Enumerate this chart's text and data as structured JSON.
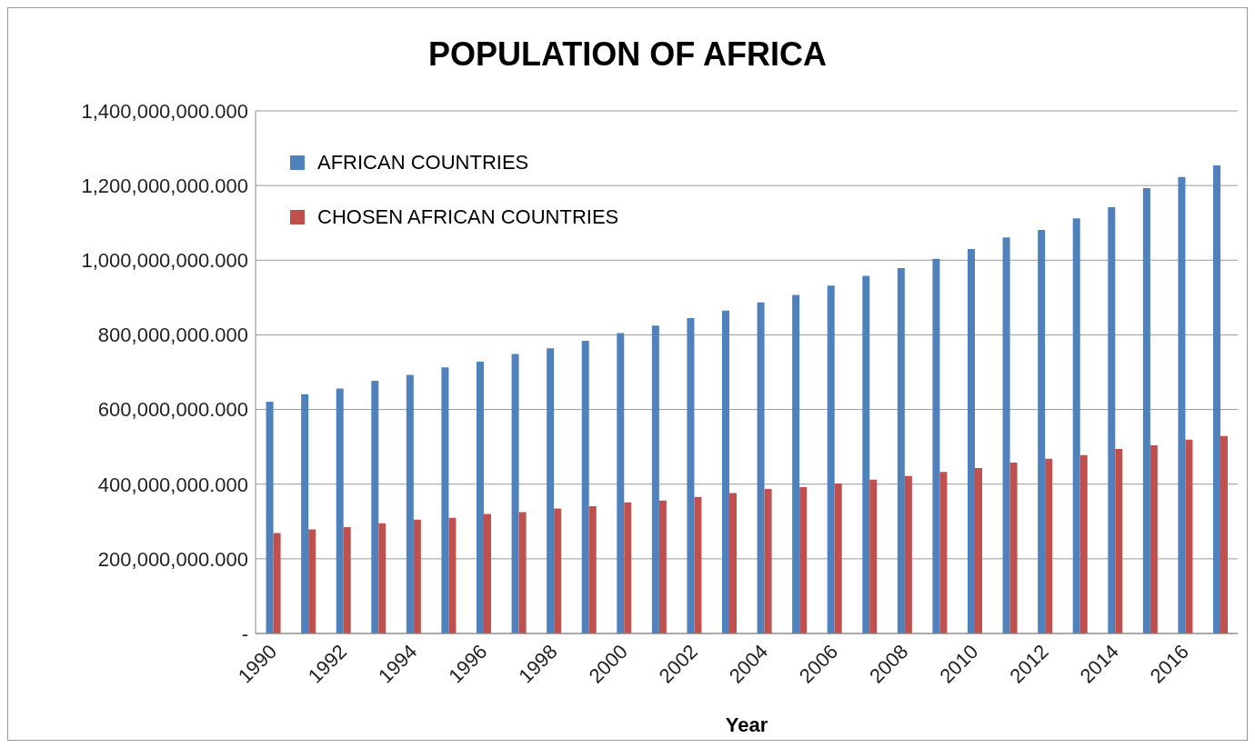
{
  "chart_data": {
    "type": "bar",
    "title": "POPULATION OF AFRICA",
    "xlabel": "Year",
    "categories": [
      "1990",
      null,
      "1992",
      null,
      "1994",
      null,
      "1996",
      null,
      "1998",
      null,
      "2000",
      null,
      "2002",
      null,
      "2004",
      null,
      "2006",
      null,
      "2008",
      null,
      "2010",
      null,
      "2012",
      null,
      "2014",
      null,
      "2016",
      null
    ],
    "series": [
      {
        "name": "AFRICAN COUNTRIES",
        "color": "#4f81bd",
        "values": [
          621000000,
          641000000,
          656000000,
          677000000,
          693000000,
          713000000,
          728000000,
          749000000,
          764000000,
          784000000,
          805000000,
          825000000,
          845000000,
          865000000,
          887000000,
          907000000,
          932000000,
          958000000,
          979000000,
          1004000000,
          1030000000,
          1061000000,
          1081000000,
          1112000000,
          1142000000,
          1193000000,
          1223000000,
          1254000000
        ]
      },
      {
        "name": "CHOSEN AFRICAN COUNTRIES",
        "color": "#c0504d",
        "values": [
          269000000,
          279000000,
          285000000,
          295000000,
          305000000,
          310000000,
          320000000,
          325000000,
          335000000,
          341000000,
          351000000,
          356000000,
          366000000,
          376000000,
          387000000,
          392000000,
          402000000,
          412000000,
          422000000,
          433000000,
          443000000,
          458000000,
          468000000,
          478000000,
          494000000,
          504000000,
          519000000,
          529000000
        ]
      }
    ],
    "ylim": [
      0,
      1400000000
    ],
    "yticks": [
      {
        "value": 0,
        "label": "-"
      },
      {
        "value": 200000000,
        "label": "200,000,000.000"
      },
      {
        "value": 400000000,
        "label": "400,000,000.000"
      },
      {
        "value": 600000000,
        "label": "600,000,000.000"
      },
      {
        "value": 800000000,
        "label": "800,000,000.000"
      },
      {
        "value": 1000000000,
        "label": "1,000,000,000.000"
      },
      {
        "value": 1200000000,
        "label": "1,200,000,000.000"
      },
      {
        "value": 1400000000,
        "label": "1,400,000,000.000"
      }
    ],
    "grid": "y",
    "legend": "top left"
  }
}
